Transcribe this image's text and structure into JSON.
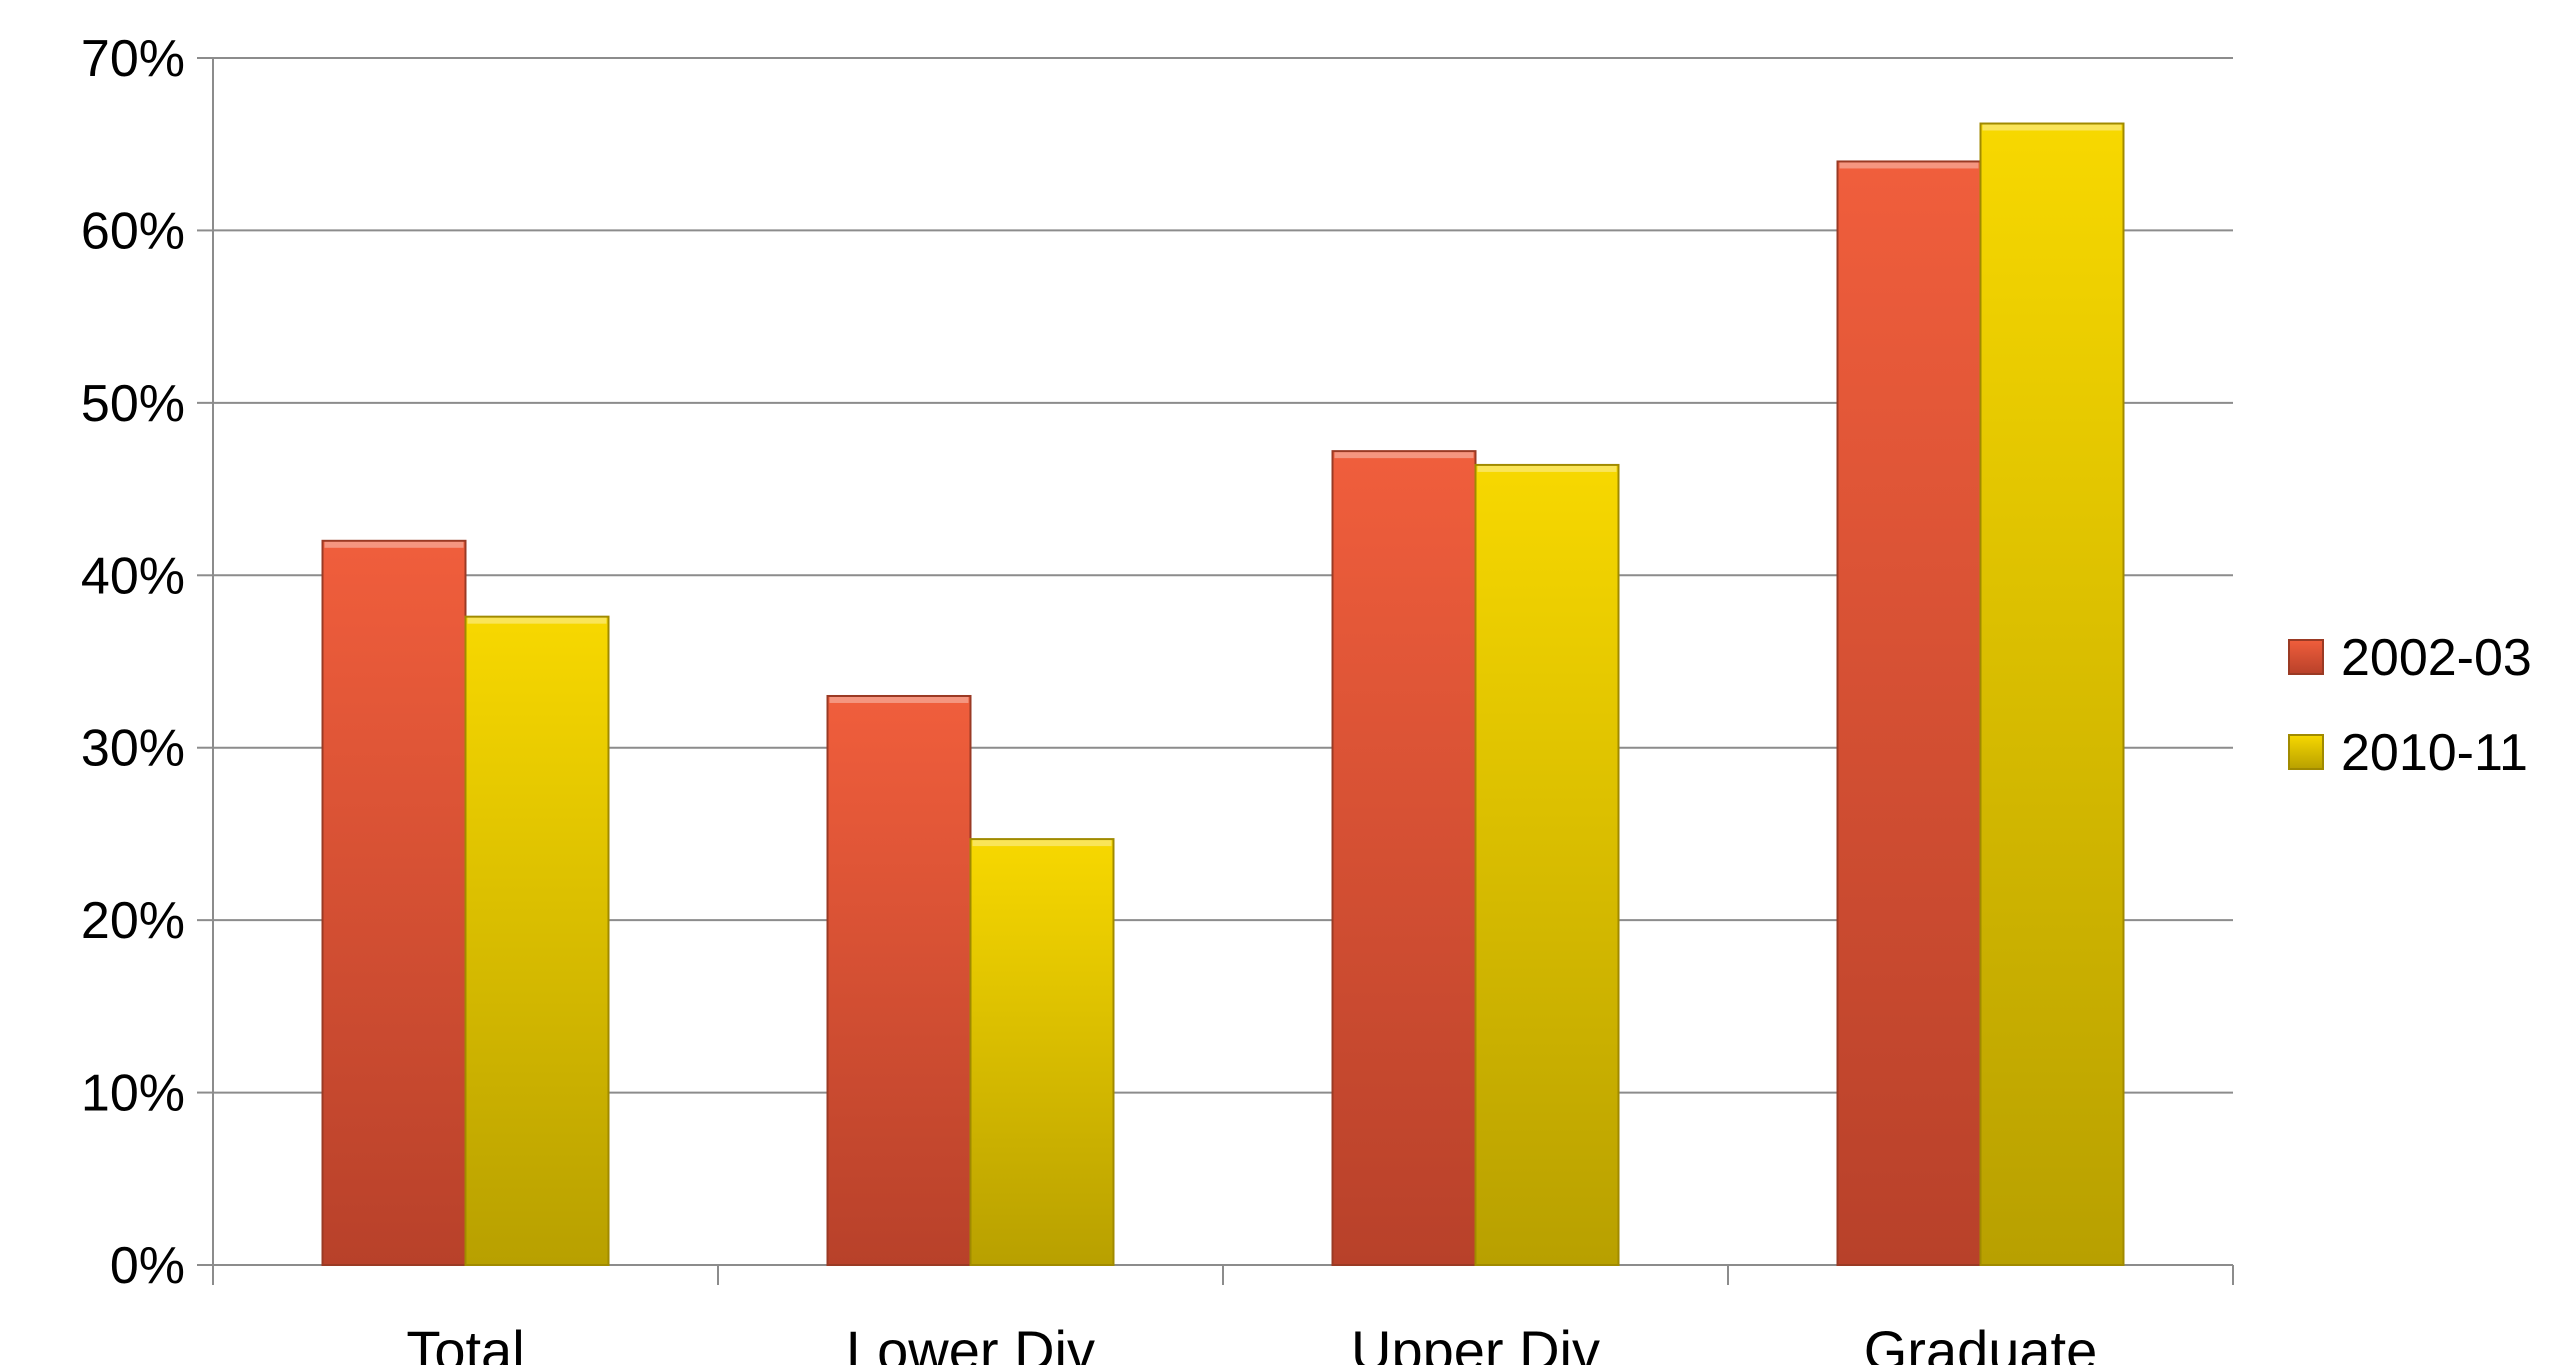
{
  "chart_data": {
    "type": "bar",
    "categories": [
      "Total",
      "Lower Div",
      "Upper Div",
      "Graduate"
    ],
    "series": [
      {
        "name": "2002-03",
        "values": [
          42,
          33,
          47.2,
          64
        ],
        "color": "#e65a38"
      },
      {
        "name": "2010-11",
        "values": [
          37.6,
          24.7,
          46.4,
          66.2
        ],
        "color": "#f2d000"
      }
    ],
    "y_ticks": [
      "0%",
      "10%",
      "20%",
      "30%",
      "40%",
      "50%",
      "60%",
      "70%"
    ],
    "ylim": [
      0,
      70
    ],
    "y_unit": "%",
    "grid": true,
    "legend_position": "right"
  }
}
